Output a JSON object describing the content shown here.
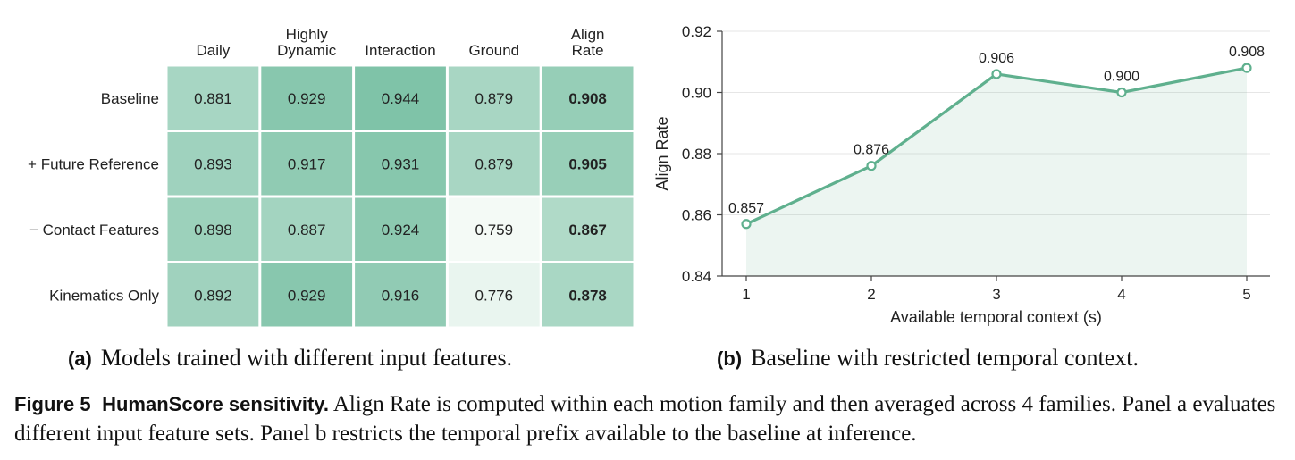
{
  "chart_data": [
    {
      "type": "heatmap",
      "columns": [
        "Daily",
        "Highly\nDynamic",
        "Interaction",
        "Ground",
        "Align\nRate"
      ],
      "rows": [
        "Baseline",
        "+ Future Reference",
        "− Contact Features",
        "Kinematics Only"
      ],
      "values": [
        [
          "0.881",
          "0.929",
          "0.944",
          "0.879",
          "0.908"
        ],
        [
          "0.893",
          "0.917",
          "0.931",
          "0.879",
          "0.905"
        ],
        [
          "0.898",
          "0.887",
          "0.924",
          "0.759",
          "0.867"
        ],
        [
          "0.892",
          "0.929",
          "0.916",
          "0.776",
          "0.878"
        ]
      ],
      "bold_column": "Align\nRate",
      "color_low": "#f4faf6",
      "color_high": "#7fc3a8",
      "caption_tag": "(a)",
      "caption": "Models trained with different input features."
    },
    {
      "type": "line",
      "x": [
        1,
        2,
        3,
        4,
        5
      ],
      "y": [
        0.857,
        0.876,
        0.906,
        0.9,
        0.908
      ],
      "point_labels": [
        "0.857",
        "0.876",
        "0.906",
        "0.900",
        "0.908"
      ],
      "xlabel": "Available temporal context (s)",
      "ylabel": "Align Rate",
      "ylim": [
        0.84,
        0.92
      ],
      "yticks": [
        "0.84",
        "0.86",
        "0.88",
        "0.90",
        "0.92"
      ],
      "xticks": [
        "1",
        "2",
        "3",
        "4",
        "5"
      ],
      "grid": "horizontal",
      "color": "#5fb08e",
      "caption_tag": "(b)",
      "caption": "Baseline with restricted temporal context."
    }
  ],
  "figure_caption": {
    "label": "Figure 5",
    "title": "HumanScore sensitivity.",
    "text": "Align Rate is computed within each motion family and then averaged across 4 families. Panel a evaluates different input feature sets. Panel b restricts the temporal prefix available to the baseline at inference."
  }
}
